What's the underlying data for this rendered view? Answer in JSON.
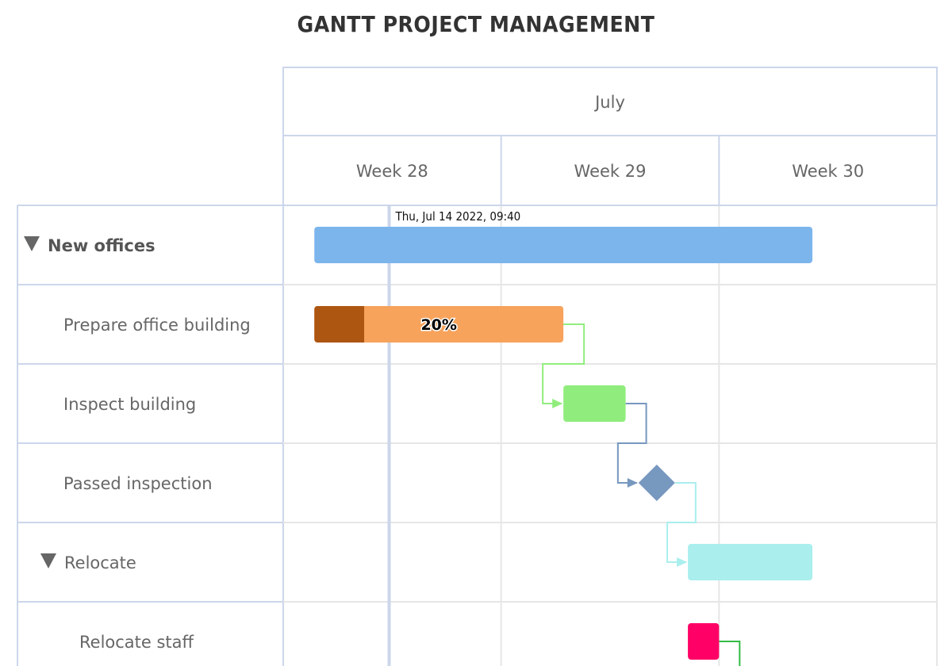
{
  "page": {
    "title": "GANTT PROJECT MANAGEMENT"
  },
  "chart_data": {
    "type": "gantt",
    "title": "GANTT PROJECT MANAGEMENT",
    "x_range": [
      "2022-07-11",
      "2022-08-01"
    ],
    "month_label": "July",
    "week_labels": [
      "Week 28",
      "Week 29",
      "Week 30"
    ],
    "current_time": {
      "date": "2022-07-14T09:40",
      "label": "Thu, Jul 14 2022, 09:40"
    },
    "tasks": [
      {
        "id": "new-offices",
        "name": "New offices",
        "level": 0,
        "collapsible": true,
        "start": "2022-07-12",
        "end": "2022-07-28",
        "color": "#7cb5ec"
      },
      {
        "id": "prepare",
        "name": "Prepare office building",
        "level": 1,
        "start": "2022-07-12",
        "end": "2022-07-20",
        "completed": 0.2,
        "completed_label": "20%",
        "color": "#f7a35c",
        "completed_color": "#ad5612",
        "dependency": "inspect"
      },
      {
        "id": "inspect",
        "name": "Inspect building",
        "level": 1,
        "start": "2022-07-20",
        "end": "2022-07-22",
        "color": "#90ed7d",
        "dependency": "passed"
      },
      {
        "id": "passed",
        "name": "Passed inspection",
        "level": 1,
        "milestone": true,
        "start": "2022-07-23",
        "color": "#7798bf",
        "dependency": "relocate"
      },
      {
        "id": "relocate",
        "name": "Relocate",
        "level": 1,
        "collapsible": true,
        "start": "2022-07-24",
        "end": "2022-07-28",
        "color": "#aaeeee"
      },
      {
        "id": "relocate-staff",
        "name": "Relocate staff",
        "level": 2,
        "start": "2022-07-24",
        "end": "2022-07-25",
        "color": "#ff0066",
        "dependency": "next",
        "dependency_color": "#33bb44"
      }
    ],
    "grid": true
  }
}
